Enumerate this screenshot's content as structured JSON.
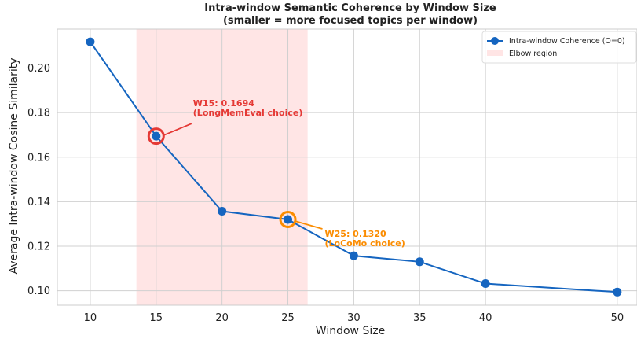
{
  "chart_data": {
    "type": "line",
    "title_line1": "Intra-window Semantic Coherence by Window Size",
    "title_line2": "(smaller = more focused topics per window)",
    "xlabel": "Window Size",
    "ylabel": "Average Intra-window Cosine Similarity",
    "categories": [
      "10",
      "15",
      "20",
      "25",
      "30",
      "35",
      "40",
      "50"
    ],
    "yticks": [
      "0.10",
      "0.12",
      "0.14",
      "0.16",
      "0.18",
      "0.20"
    ],
    "ytick_values": [
      0.1,
      0.12,
      0.14,
      0.16,
      0.18,
      0.2
    ],
    "ylim": [
      0.0935,
      0.2175
    ],
    "series": [
      {
        "name": "Intra-window Coherence (O=0)",
        "color": "#1565c0",
        "values": [
          0.2118,
          0.1694,
          0.1357,
          0.132,
          0.1157,
          0.113,
          0.1032,
          0.0994
        ]
      }
    ],
    "shaded_region": {
      "label": "Elbow region",
      "from_category": 13.5,
      "to_category": 26.5,
      "color": "#ffe5e5"
    },
    "grid": true,
    "legend_position": "top-right",
    "annotations": [
      {
        "category": "15",
        "line1": "W15: 0.1694",
        "line2": "(LongMemEval choice)",
        "color": "#e53935"
      },
      {
        "category": "25",
        "line1": "W25: 0.1320",
        "line2": "(LoCoMo choice)",
        "color": "#fb8c00"
      }
    ]
  }
}
